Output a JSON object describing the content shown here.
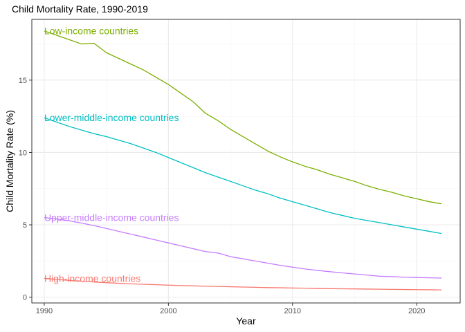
{
  "chart_data": {
    "type": "line",
    "title": "Child Mortality Rate, 1990-2019",
    "xlabel": "Year",
    "ylabel": "Child Mortality Rate (%)",
    "xlim": [
      1989.0,
      2023.5
    ],
    "ylim": [
      -0.4,
      19.2
    ],
    "x_ticks": [
      1990,
      2000,
      2010,
      2020
    ],
    "y_ticks": [
      0,
      5,
      10,
      15
    ],
    "x_tick_labels": [
      "1990",
      "2000",
      "2010",
      "2020"
    ],
    "y_tick_labels": [
      "0",
      "5",
      "10",
      "15"
    ],
    "grid": true,
    "legend": "direct labels at series start",
    "series": [
      {
        "name": "Low-income countries",
        "color": "#7CAE00",
        "x": [
          1990,
          1991,
          1992,
          1993,
          1994,
          1995,
          1996,
          1997,
          1998,
          1999,
          2000,
          2001,
          2002,
          2003,
          2004,
          2005,
          2006,
          2007,
          2008,
          2009,
          2010,
          2011,
          2012,
          2013,
          2014,
          2015,
          2016,
          2017,
          2018,
          2019,
          2020,
          2021,
          2022
        ],
        "y": [
          18.4,
          18.1,
          17.8,
          17.5,
          17.55,
          16.9,
          16.5,
          16.1,
          15.7,
          15.2,
          14.7,
          14.1,
          13.5,
          12.7,
          12.2,
          11.6,
          11.1,
          10.6,
          10.1,
          9.7,
          9.35,
          9.05,
          8.8,
          8.5,
          8.25,
          8.0,
          7.7,
          7.45,
          7.25,
          7.0,
          6.8,
          6.6,
          6.45
        ]
      },
      {
        "name": "Lower-middle-income countries",
        "color": "#00BFC4",
        "x": [
          1990,
          1991,
          1992,
          1993,
          1994,
          1995,
          1996,
          1997,
          1998,
          1999,
          2000,
          2001,
          2002,
          2003,
          2004,
          2005,
          2006,
          2007,
          2008,
          2009,
          2010,
          2011,
          2012,
          2013,
          2014,
          2015,
          2016,
          2017,
          2018,
          2019,
          2020,
          2021,
          2022
        ],
        "y": [
          12.4,
          12.1,
          11.8,
          11.55,
          11.3,
          11.1,
          10.85,
          10.6,
          10.3,
          10.0,
          9.65,
          9.3,
          8.95,
          8.6,
          8.3,
          8.0,
          7.7,
          7.4,
          7.15,
          6.85,
          6.6,
          6.35,
          6.1,
          5.85,
          5.65,
          5.45,
          5.3,
          5.15,
          5.0,
          4.85,
          4.7,
          4.55,
          4.4
        ]
      },
      {
        "name": "Upper-middle-income countries",
        "color": "#C77CFF",
        "x": [
          1990,
          1991,
          1992,
          1993,
          1994,
          1995,
          1996,
          1997,
          1998,
          1999,
          2000,
          2001,
          2002,
          2003,
          2004,
          2005,
          2006,
          2007,
          2008,
          2009,
          2010,
          2011,
          2012,
          2013,
          2014,
          2015,
          2016,
          2017,
          2018,
          2019,
          2020,
          2021,
          2022
        ],
        "y": [
          5.5,
          5.4,
          5.28,
          5.12,
          4.95,
          4.75,
          4.55,
          4.35,
          4.15,
          3.95,
          3.75,
          3.55,
          3.35,
          3.15,
          3.05,
          2.8,
          2.65,
          2.5,
          2.35,
          2.2,
          2.07,
          1.95,
          1.85,
          1.76,
          1.68,
          1.6,
          1.53,
          1.45,
          1.42,
          1.38,
          1.36,
          1.34,
          1.32
        ]
      },
      {
        "name": "High-income countries",
        "color": "#F8766D",
        "x": [
          1990,
          1991,
          1992,
          1993,
          1994,
          1995,
          1996,
          1997,
          1998,
          1999,
          2000,
          2001,
          2002,
          2003,
          2004,
          2005,
          2006,
          2007,
          2008,
          2009,
          2010,
          2011,
          2012,
          2013,
          2014,
          2015,
          2016,
          2017,
          2018,
          2019,
          2020,
          2021,
          2022
        ],
        "y": [
          1.3,
          1.22,
          1.16,
          1.1,
          1.05,
          1.0,
          0.96,
          0.92,
          0.89,
          0.86,
          0.83,
          0.8,
          0.78,
          0.76,
          0.74,
          0.72,
          0.7,
          0.68,
          0.66,
          0.65,
          0.63,
          0.62,
          0.6,
          0.59,
          0.58,
          0.57,
          0.56,
          0.55,
          0.54,
          0.53,
          0.52,
          0.51,
          0.5
        ]
      }
    ]
  }
}
